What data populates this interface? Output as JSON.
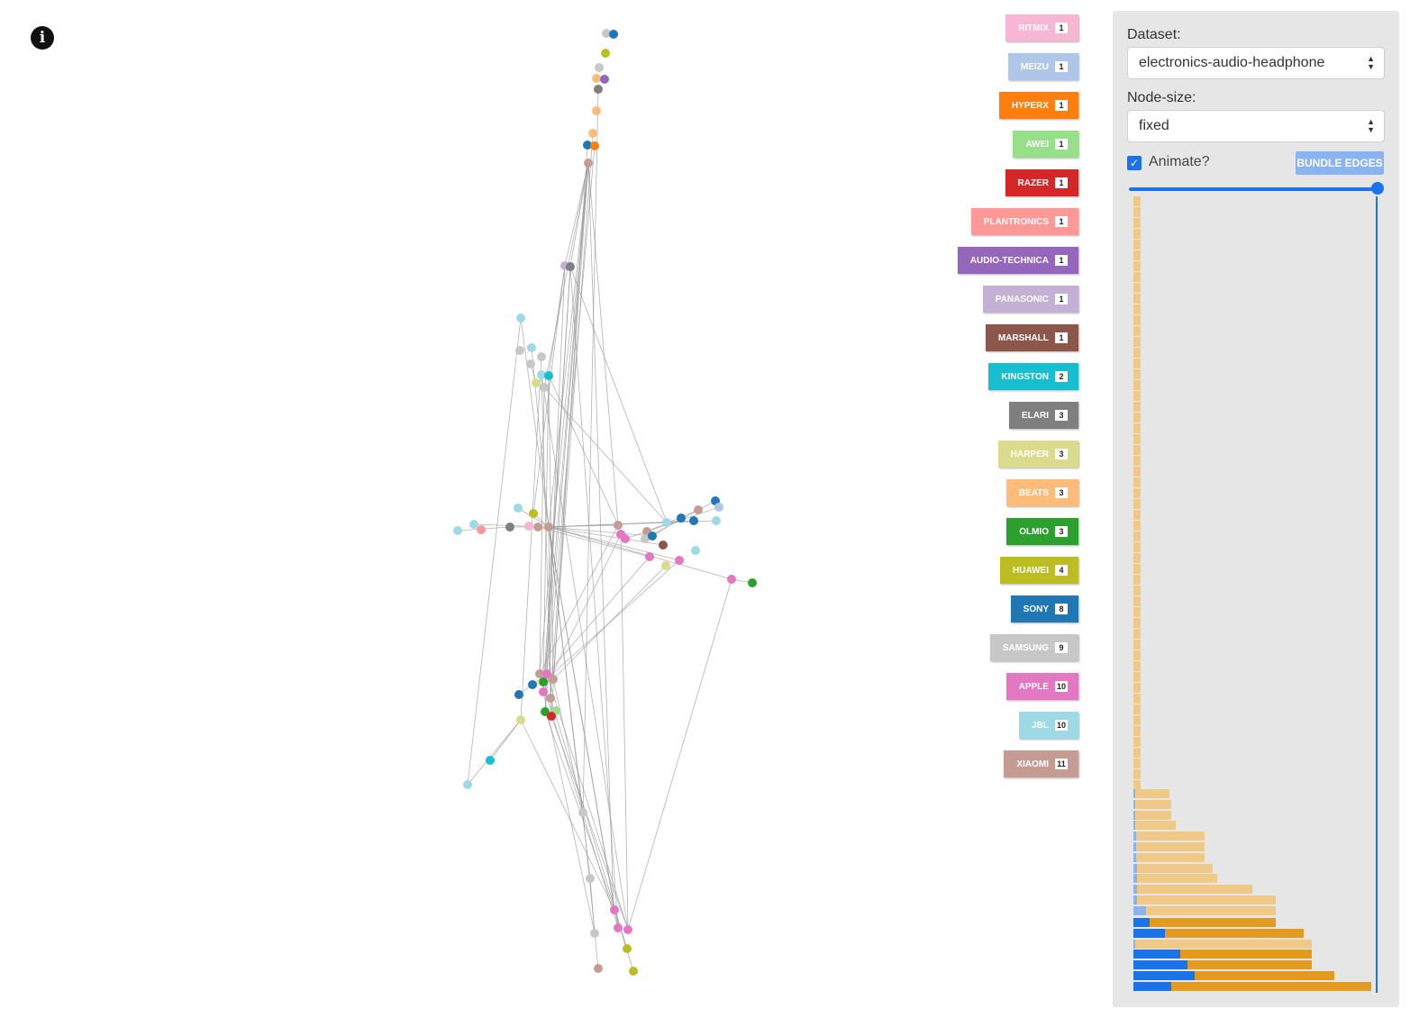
{
  "info_icon": "i",
  "legend": [
    {
      "name": "RITMIX",
      "count": "1",
      "color": "#f7b6d2"
    },
    {
      "name": "MEIZU",
      "count": "1",
      "color": "#aec7e8"
    },
    {
      "name": "HYPERX",
      "count": "1",
      "color": "#ff7f0e"
    },
    {
      "name": "AWEI",
      "count": "1",
      "color": "#98df8a"
    },
    {
      "name": "RAZER",
      "count": "1",
      "color": "#d62728"
    },
    {
      "name": "PLANTRONICS",
      "count": "1",
      "color": "#ff9896"
    },
    {
      "name": "AUDIO-TECHNICA",
      "count": "1",
      "color": "#9467bd"
    },
    {
      "name": "PANASONIC",
      "count": "1",
      "color": "#c5b0d5"
    },
    {
      "name": "MARSHALL",
      "count": "1",
      "color": "#8c564b"
    },
    {
      "name": "KINGSTON",
      "count": "2",
      "color": "#17becf"
    },
    {
      "name": "ELARI",
      "count": "3",
      "color": "#7f7f7f"
    },
    {
      "name": "HARPER",
      "count": "3",
      "color": "#dbdb8d"
    },
    {
      "name": "BEATS",
      "count": "3",
      "color": "#ffbb78"
    },
    {
      "name": "OLMIO",
      "count": "3",
      "color": "#2ca02c"
    },
    {
      "name": "HUAWEI",
      "count": "4",
      "color": "#bcbd22"
    },
    {
      "name": "SONY",
      "count": "8",
      "color": "#1f77b4"
    },
    {
      "name": "SAMSUNG",
      "count": "9",
      "color": "#c7c7c7"
    },
    {
      "name": "APPLE",
      "count": "10",
      "color": "#e377c2"
    },
    {
      "name": "JBL",
      "count": "10",
      "color": "#9edae5"
    },
    {
      "name": "XIAOMI",
      "count": "11",
      "color": "#c49c94"
    }
  ],
  "panel": {
    "dataset_label": "Dataset:",
    "dataset_value": "electronics-audio-headphone",
    "node_size_label": "Node-size:",
    "node_size_value": "fixed",
    "animate_label": "Animate?",
    "animate_checked": true,
    "bundle_button": "BUNDLE EDGES",
    "slider_value": 1.0
  },
  "histogram": {
    "colors": {
      "light_orange": "#f0c987",
      "dark_orange": "#e39a1e",
      "blue": "#1a73e8",
      "light_blue": "#8ab4f0"
    }
  }
}
